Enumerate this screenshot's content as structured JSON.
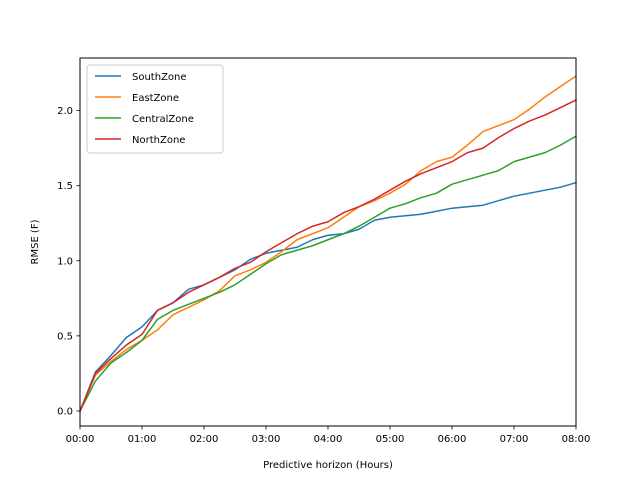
{
  "chart_data": {
    "type": "line",
    "xlabel": "Predictive horizon (Hours)",
    "ylabel": "RMSE (F)",
    "xlim": [
      0,
      8
    ],
    "ylim": [
      -0.1,
      2.35
    ],
    "x_ticks": [
      0,
      1,
      2,
      3,
      4,
      5,
      6,
      7,
      8
    ],
    "x_tick_labels": [
      "00:00",
      "01:00",
      "02:00",
      "03:00",
      "04:00",
      "05:00",
      "06:00",
      "07:00",
      "08:00"
    ],
    "y_ticks": [
      0.0,
      0.5,
      1.0,
      1.5,
      2.0
    ],
    "y_tick_labels": [
      "0.0",
      "0.5",
      "1.0",
      "1.5",
      "2.0"
    ],
    "grid": false,
    "legend_position": "upper-left",
    "x": [
      0,
      0.25,
      0.5,
      0.75,
      1,
      1.25,
      1.5,
      1.75,
      2,
      2.25,
      2.5,
      2.75,
      3,
      3.25,
      3.5,
      3.75,
      4,
      4.25,
      4.5,
      4.75,
      5,
      5.25,
      5.5,
      5.75,
      6,
      6.25,
      6.5,
      6.75,
      7,
      7.25,
      7.5,
      7.75,
      8
    ],
    "series": [
      {
        "name": "SouthZone",
        "color": "#1f77b4",
        "values": [
          0.0,
          0.26,
          0.37,
          0.49,
          0.56,
          0.67,
          0.72,
          0.81,
          0.84,
          0.89,
          0.94,
          1.01,
          1.05,
          1.07,
          1.09,
          1.14,
          1.17,
          1.18,
          1.21,
          1.27,
          1.29,
          1.3,
          1.31,
          1.33,
          1.35,
          1.36,
          1.37,
          1.4,
          1.43,
          1.45,
          1.47,
          1.49,
          1.52
        ]
      },
      {
        "name": "EastZone",
        "color": "#ff7f0e",
        "values": [
          0.0,
          0.24,
          0.33,
          0.41,
          0.47,
          0.54,
          0.64,
          0.69,
          0.74,
          0.8,
          0.9,
          0.94,
          0.99,
          1.06,
          1.14,
          1.18,
          1.22,
          1.29,
          1.36,
          1.4,
          1.45,
          1.51,
          1.6,
          1.66,
          1.69,
          1.77,
          1.86,
          1.9,
          1.94,
          2.01,
          2.09,
          2.16,
          2.23
        ]
      },
      {
        "name": "CentralZone",
        "color": "#2ca02c",
        "values": [
          0.0,
          0.2,
          0.32,
          0.39,
          0.47,
          0.61,
          0.67,
          0.71,
          0.75,
          0.79,
          0.84,
          0.91,
          0.98,
          1.04,
          1.07,
          1.1,
          1.14,
          1.18,
          1.23,
          1.29,
          1.35,
          1.38,
          1.42,
          1.45,
          1.51,
          1.54,
          1.57,
          1.6,
          1.66,
          1.69,
          1.72,
          1.77,
          1.83
        ]
      },
      {
        "name": "NorthZone",
        "color": "#d62728",
        "values": [
          0.0,
          0.25,
          0.35,
          0.44,
          0.51,
          0.67,
          0.72,
          0.79,
          0.84,
          0.89,
          0.95,
          0.99,
          1.06,
          1.12,
          1.18,
          1.23,
          1.26,
          1.32,
          1.36,
          1.41,
          1.47,
          1.53,
          1.58,
          1.62,
          1.66,
          1.72,
          1.75,
          1.82,
          1.88,
          1.93,
          1.97,
          2.02,
          2.07
        ]
      }
    ]
  }
}
